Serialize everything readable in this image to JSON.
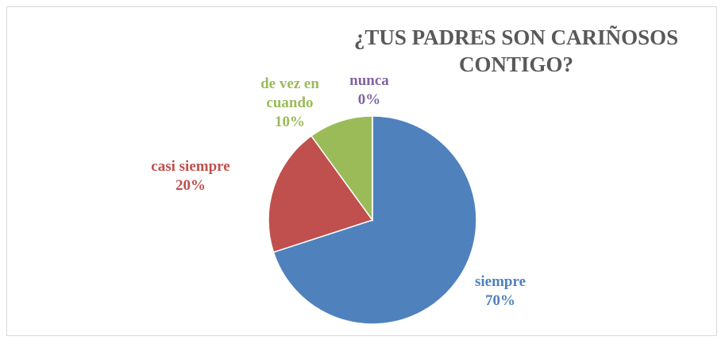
{
  "chart_data": {
    "type": "pie",
    "title": "¿TUS PADRES SON CARIÑOSOS CONTIGO?",
    "categories": [
      "siempre",
      "casi siempre",
      "de vez en cuando",
      "nunca"
    ],
    "values": [
      70,
      20,
      10,
      0
    ],
    "value_labels": [
      "70%",
      "20%",
      "10%",
      "0%"
    ],
    "colors": [
      "#4f81bd",
      "#c0504d",
      "#9bbb59",
      "#8064a2"
    ]
  }
}
